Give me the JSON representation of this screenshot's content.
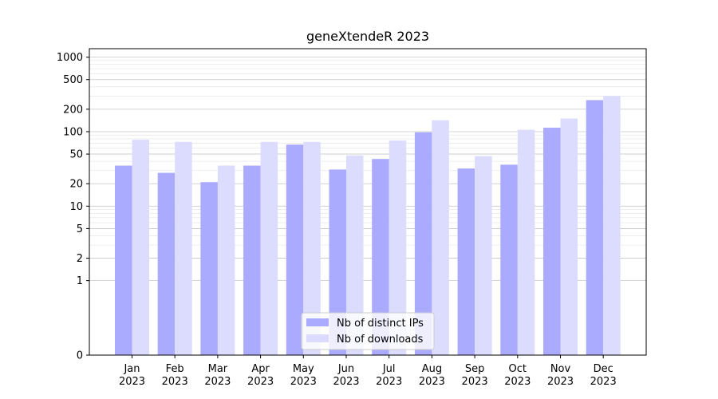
{
  "chart_data": {
    "type": "bar",
    "title": "geneXtendeR 2023",
    "xlabel": "",
    "ylabel": "",
    "yscale": "symlog",
    "ylim": [
      0,
      1300
    ],
    "yticks": [
      0,
      1,
      2,
      5,
      10,
      20,
      50,
      100,
      200,
      500,
      1000
    ],
    "ytick_labels": [
      "0",
      "1",
      "2",
      "5",
      "10",
      "20",
      "50",
      "100",
      "200",
      "500",
      "1000"
    ],
    "grid": true,
    "legend_position": "bottom-center",
    "categories": [
      {
        "month": "Jan",
        "year": "2023"
      },
      {
        "month": "Feb",
        "year": "2023"
      },
      {
        "month": "Mar",
        "year": "2023"
      },
      {
        "month": "Apr",
        "year": "2023"
      },
      {
        "month": "May",
        "year": "2023"
      },
      {
        "month": "Jun",
        "year": "2023"
      },
      {
        "month": "Jul",
        "year": "2023"
      },
      {
        "month": "Aug",
        "year": "2023"
      },
      {
        "month": "Sep",
        "year": "2023"
      },
      {
        "month": "Oct",
        "year": "2023"
      },
      {
        "month": "Nov",
        "year": "2023"
      },
      {
        "month": "Dec",
        "year": "2023"
      }
    ],
    "series": [
      {
        "name": "Nb of distinct IPs",
        "color": "#aaaaff",
        "values": [
          35,
          28,
          21,
          35,
          67,
          31,
          43,
          98,
          32,
          36,
          113,
          265
        ]
      },
      {
        "name": "Nb of downloads",
        "color": "#dcdcff",
        "values": [
          78,
          73,
          35,
          73,
          73,
          48,
          76,
          142,
          47,
          106,
          150,
          300
        ]
      }
    ]
  }
}
